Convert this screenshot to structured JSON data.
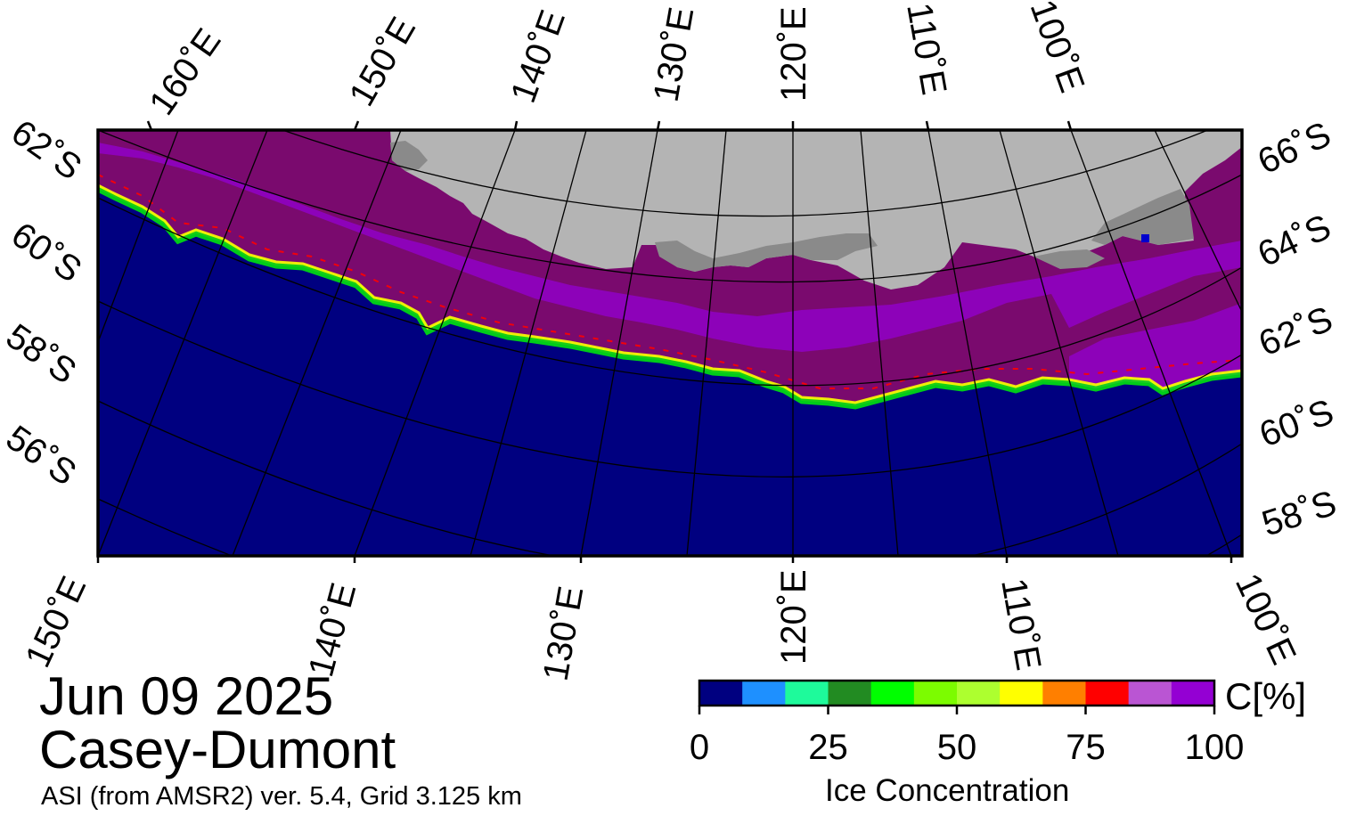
{
  "map": {
    "date": "Jun 09 2025",
    "region": "Casey-Dumont",
    "product": "ASI (from AMSR2) ver. 5.4,  Grid 3.125 km",
    "top_lon_labels": [
      "160˚E",
      "150˚E",
      "140˚E",
      "130˚E",
      "120˚E",
      "110˚E",
      "100˚E"
    ],
    "bottom_lon_labels": [
      "150˚E",
      "140˚E",
      "130˚E",
      "120˚E",
      "110˚E",
      "100˚E"
    ],
    "left_lat_labels": [
      "62˚S",
      "60˚S",
      "58˚S",
      "56˚S"
    ],
    "right_lat_labels": [
      "66˚S",
      "64˚S",
      "62˚S",
      "60˚S",
      "58˚S"
    ],
    "colors": {
      "ocean": "#000080",
      "land": "#b4b4b4",
      "ice_shelf": "#8a8a8a",
      "ice_high": "#7a0a6e",
      "grid": "#000000"
    }
  },
  "colorbar": {
    "title": "Ice Concentration",
    "unit": "C[%]",
    "ticks": [
      "0",
      "25",
      "50",
      "75",
      "100"
    ],
    "bins": [
      "#000080",
      "#1e90ff",
      "#1efa9b",
      "#228b22",
      "#00ff00",
      "#7cfc00",
      "#adff2f",
      "#ffff00",
      "#ff7f00",
      "#ff0000",
      "#ba55d3",
      "#9400d3"
    ]
  }
}
